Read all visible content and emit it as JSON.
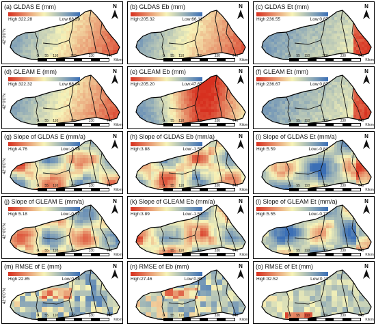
{
  "north_label": "N",
  "latitude_label": "42°0'0\"N",
  "scale": {
    "ticks": [
      "0",
      "55",
      "110",
      "220",
      "330",
      "440"
    ],
    "unit": "Kilometers"
  },
  "colors": {
    "high": "#d7301f",
    "mid": "#f7f3b8",
    "low": "#3b6fb6"
  },
  "panels": [
    {
      "label": "(a)",
      "title": "GLDAS E (mm)",
      "high": "High:322.28",
      "low": "Low:68.59",
      "show_lat": true,
      "palette": "reverse",
      "pattern": "smooth_east_high"
    },
    {
      "label": "(b)",
      "title": "GLDAS Eb (mm)",
      "high": "High:205.32",
      "low": "Low:66.11",
      "show_lat": false,
      "palette": "reverse",
      "pattern": "smooth_east_high"
    },
    {
      "label": "(c)",
      "title": "GLDAS Et (mm)",
      "high": "High:236.55",
      "low": "Low:0.87",
      "show_lat": false,
      "palette": "reverse",
      "pattern": "west_low_east_high"
    },
    {
      "label": "(d)",
      "title": "GLEAM E (mm)",
      "high": "High:322.32",
      "low": "Low:68.64",
      "show_lat": true,
      "palette": "reverse",
      "pattern": "smooth_east_high"
    },
    {
      "label": "(e)",
      "title": "GLEAM Eb (mm)",
      "high": "High:205.20",
      "low": "Low:47.67",
      "show_lat": false,
      "palette": "reverse",
      "pattern": "center_high"
    },
    {
      "label": "(f)",
      "title": "GLEAM Et (mm)",
      "high": "High:236.67",
      "low": "Low:0.87",
      "show_lat": false,
      "palette": "reverse",
      "pattern": "west_low_east_high"
    },
    {
      "label": "(g)",
      "title": "Slope of GLDAS E (mm/a)",
      "high": "High:4.76",
      "low": "Low:-0.78",
      "show_lat": true,
      "palette": "reverse",
      "pattern": "patchy"
    },
    {
      "label": "(h)",
      "title": "Slope of GLDAS Eb (mm/a)",
      "high": "High:3.88",
      "low": "Low:-1.53",
      "show_lat": false,
      "palette": "reverse",
      "pattern": "patchy"
    },
    {
      "label": "(i)",
      "title": "Slope of GLDAS Et (mm/a)",
      "high": "High:5.59",
      "low": "Low:-0.81",
      "show_lat": false,
      "palette": "reverse",
      "pattern": "patchy_light"
    },
    {
      "label": "(j)",
      "title": "Slope of GLEAM E (mm/a)",
      "high": "High:5.18",
      "low": "Low:-0.77",
      "show_lat": true,
      "palette": "reverse",
      "pattern": "patchy"
    },
    {
      "label": "(k)",
      "title": "Slope of GLEAM Eb (mm/a)",
      "high": "High:3.89",
      "low": "Low:-1.53",
      "show_lat": false,
      "palette": "reverse",
      "pattern": "patchy"
    },
    {
      "label": "(l)",
      "title": "Slope of GLEAM Et (mm/a)",
      "high": "High:5.55",
      "low": "Low:-0.77",
      "show_lat": false,
      "palette": "reverse",
      "pattern": "patchy_light"
    },
    {
      "label": "(m)",
      "title": "RMSE of E (mm)",
      "high": "High:22.85",
      "low": "Low:0.78",
      "show_lat": true,
      "palette": "reverse",
      "pattern": "rmse"
    },
    {
      "label": "(n)",
      "title": "RMSE of Eb (mm)",
      "high": "High:27.46",
      "low": "Low:0.80",
      "show_lat": false,
      "palette": "reverse",
      "pattern": "rmse"
    },
    {
      "label": "(o)",
      "title": "RMSE of Et (mm)",
      "high": "High:32.52",
      "low": "Low:0.11",
      "show_lat": false,
      "palette": "reverse",
      "pattern": "rmse_light"
    }
  ]
}
